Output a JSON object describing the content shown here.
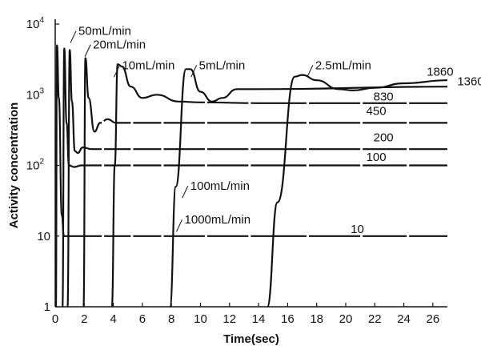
{
  "chart_data": {
    "type": "line",
    "title": "",
    "xlabel": "Time(sec)",
    "ylabel": "Activity concentration",
    "x_scale": "linear",
    "y_scale": "log",
    "xlim": [
      0,
      27
    ],
    "ylim": [
      1,
      10000
    ],
    "x_ticks": [
      {
        "value": 0,
        "label": "0"
      },
      {
        "value": 2,
        "label": "2"
      },
      {
        "value": 4,
        "label": "4"
      },
      {
        "value": 6,
        "label": "6"
      },
      {
        "value": 8,
        "label": "8"
      },
      {
        "value": 10,
        "label": "10"
      },
      {
        "value": 12,
        "label": "12"
      },
      {
        "value": 14,
        "label": "14"
      },
      {
        "value": 16,
        "label": "16"
      },
      {
        "value": 18,
        "label": "18"
      },
      {
        "value": 20,
        "label": "20"
      },
      {
        "value": 22,
        "label": "22"
      },
      {
        "value": 24,
        "label": "24"
      },
      {
        "value": 26,
        "label": "26"
      }
    ],
    "y_ticks": [
      {
        "value": 1,
        "label": "1"
      },
      {
        "value": 10,
        "label": "10"
      },
      {
        "value": 100,
        "label": "10",
        "sup": "2"
      },
      {
        "value": 1000,
        "label": "10",
        "sup": "3"
      },
      {
        "value": 10000,
        "label": "10",
        "sup": "4"
      }
    ],
    "grid": false,
    "legend": "none",
    "series": [
      {
        "name": "1000mL/min",
        "points": [
          [
            0.05,
            1
          ],
          [
            0.12,
            5000
          ],
          [
            0.25,
            900
          ],
          [
            0.45,
            20
          ],
          [
            0.6,
            10
          ],
          [
            1.5,
            10
          ],
          [
            27,
            10
          ]
        ]
      },
      {
        "name": "100mL/min",
        "points": [
          [
            0.5,
            1
          ],
          [
            0.62,
            4500
          ],
          [
            0.78,
            400
          ],
          [
            0.95,
            100
          ],
          [
            1.3,
            95
          ],
          [
            1.8,
            100
          ],
          [
            27,
            100
          ]
        ]
      },
      {
        "name": "50mL/min",
        "points": [
          [
            0.85,
            1
          ],
          [
            1.0,
            4300
          ],
          [
            1.15,
            800
          ],
          [
            1.35,
            160
          ],
          [
            1.55,
            150
          ],
          [
            1.9,
            180
          ],
          [
            2.5,
            170
          ],
          [
            27,
            170
          ]
        ]
      },
      {
        "name": "20mL/min",
        "points": [
          [
            1.95,
            1
          ],
          [
            2.08,
            3300
          ],
          [
            2.3,
            900
          ],
          [
            2.7,
            300
          ],
          [
            3.1,
            400
          ],
          [
            3.6,
            450
          ],
          [
            4.2,
            400
          ],
          [
            6,
            400
          ],
          [
            27,
            400
          ]
        ]
      },
      {
        "name": "10mL/min",
        "points": [
          [
            3.9,
            1
          ],
          [
            4.1,
            100
          ],
          [
            4.3,
            2700
          ],
          [
            4.6,
            2500
          ],
          [
            5.2,
            1300
          ],
          [
            6.0,
            900
          ],
          [
            7.0,
            1000
          ],
          [
            8.5,
            800
          ],
          [
            10,
            780
          ],
          [
            14,
            760
          ],
          [
            27,
            760
          ]
        ]
      },
      {
        "name": "5mL/min",
        "points": [
          [
            7.9,
            1
          ],
          [
            8.3,
            50
          ],
          [
            9.0,
            2300
          ],
          [
            9.3,
            2300
          ],
          [
            10,
            1100
          ],
          [
            10.8,
            800
          ],
          [
            11.5,
            900
          ],
          [
            12.5,
            1200
          ],
          [
            14,
            1200
          ],
          [
            27,
            1300
          ]
        ]
      },
      {
        "name": "2.5mL/min",
        "points": [
          [
            14.6,
            1
          ],
          [
            15.3,
            30
          ],
          [
            16.5,
            1800
          ],
          [
            17.0,
            1900
          ],
          [
            18.0,
            1600
          ],
          [
            19.5,
            1200
          ],
          [
            20.5,
            1150
          ],
          [
            22,
            1250
          ],
          [
            24,
            1450
          ],
          [
            27,
            1600
          ]
        ]
      }
    ],
    "series_labels": [
      {
        "series": "50mL/min",
        "text": "50mL/min",
        "x": 1.6,
        "y": 7000
      },
      {
        "series": "20mL/min",
        "text": "20mL/min",
        "x": 2.6,
        "y": 4500
      },
      {
        "series": "10mL/min",
        "text": "10mL/min",
        "x": 4.6,
        "y": 2300
      },
      {
        "series": "5mL/min",
        "text": "5mL/min",
        "x": 9.9,
        "y": 2300
      },
      {
        "series": "2.5mL/min",
        "text": "2.5mL/min",
        "x": 17.9,
        "y": 2300
      },
      {
        "series": "100mL/min",
        "text": "100mL/min",
        "x": 9.3,
        "y": 45
      },
      {
        "series": "1000mL/min",
        "text": "1000mL/min",
        "x": 8.9,
        "y": 15
      }
    ],
    "level_labels": [
      {
        "text": "1860",
        "x": 26.5,
        "y": 1860
      },
      {
        "text": "1360",
        "x": 28.6,
        "y": 1360
      },
      {
        "text": "830",
        "x": 22.6,
        "y": 830
      },
      {
        "text": "450",
        "x": 22.1,
        "y": 520
      },
      {
        "text": "200",
        "x": 22.6,
        "y": 220
      },
      {
        "text": "100",
        "x": 22.1,
        "y": 115
      },
      {
        "text": "10",
        "x": 20.8,
        "y": 11
      }
    ]
  }
}
